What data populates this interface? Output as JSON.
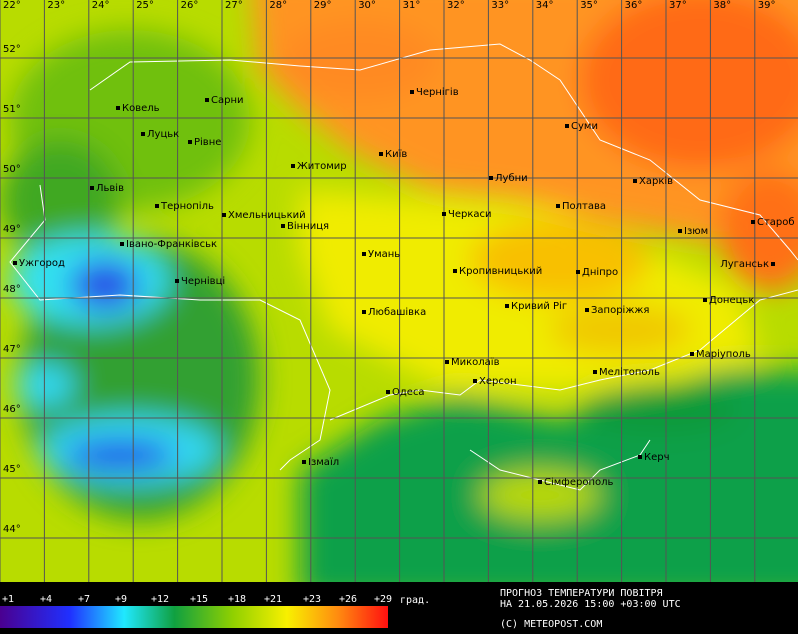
{
  "map": {
    "lon_labels": [
      "22°",
      "23°",
      "24°",
      "25°",
      "26°",
      "27°",
      "28°",
      "29°",
      "30°",
      "31°",
      "32°",
      "33°",
      "34°",
      "35°",
      "36°",
      "37°",
      "38°",
      "39°"
    ],
    "lat_labels": [
      "52°",
      "51°",
      "50°",
      "49°",
      "48°",
      "47°",
      "46°",
      "45°",
      "44°"
    ],
    "cities": [
      "Ковель",
      "Сарни",
      "Чернігів",
      "Луцьк",
      "Рівне",
      "Суми",
      "Київ",
      "Житомир",
      "Львів",
      "Лубни",
      "Харків",
      "Тернопіль",
      "Хмельницький",
      "Полтава",
      "Черкаси",
      "Вінниця",
      "Староб",
      "Ізюм",
      "Івано-Франківськ",
      "Ужгород",
      "Умань",
      "Луганськ",
      "Кропивницький",
      "Дніпро",
      "Чернівці",
      "Донецьк",
      "Кривий Ріг",
      "Запоріжжя",
      "Любашівка",
      "Маріуполь",
      "Миколаїв",
      "Мелітополь",
      "Херсон",
      "Одеса",
      "Ізмаїл",
      "Керч",
      "Сімферополь"
    ]
  },
  "legend": {
    "labels": [
      "+1",
      "+4",
      "+7",
      "+9",
      "+12",
      "+15",
      "+18",
      "+21",
      "+23",
      "+26",
      "+29"
    ],
    "unit": "град."
  },
  "caption": {
    "line1": "ПРОГНОЗ ТЕМПЕРАТУРИ ПОВІТРЯ",
    "line2": "НА 21.05.2026 15:00 +03:00 UTC",
    "copyright": "(C) METEOPOST.COM"
  }
}
